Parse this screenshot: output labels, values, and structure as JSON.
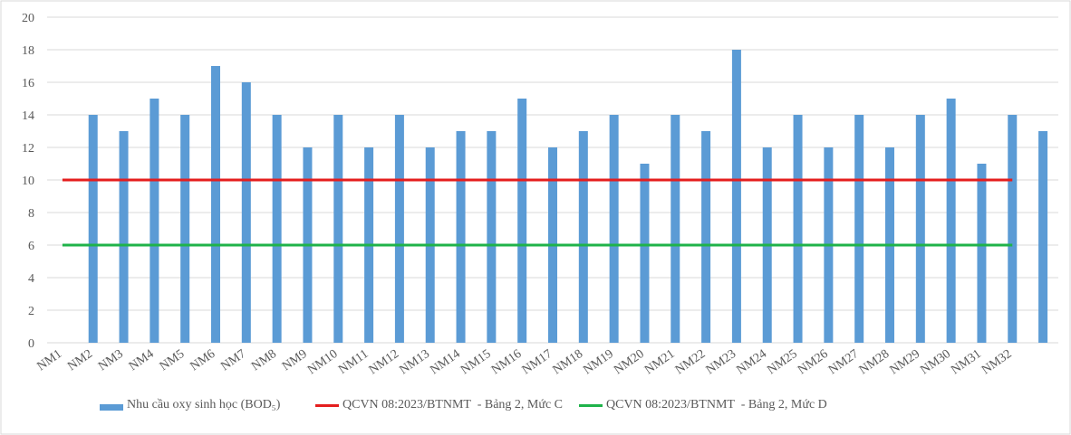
{
  "chart_data": {
    "type": "bar",
    "categories": [
      "NM1",
      "NM2",
      "NM3",
      "NM4",
      "NM5",
      "NM6",
      "NM7",
      "NM8",
      "NM9",
      "NM10",
      "NM11",
      "NM12",
      "NM13",
      "NM14",
      "NM15",
      "NM16",
      "NM17",
      "NM18",
      "NM19",
      "NM20",
      "NM21",
      "NM22",
      "NM23",
      "NM24",
      "NM25",
      "NM26",
      "NM27",
      "NM28",
      "NM29",
      "NM30",
      "NM31",
      "NM32",
      null
    ],
    "series": [
      {
        "name": "Nhu cầu oxy sinh học (BOD₅)",
        "type": "bar",
        "color": "#5b9bd5",
        "values": [
          null,
          14,
          13,
          15,
          14,
          17,
          16,
          14,
          12,
          14,
          12,
          14,
          12,
          13,
          13,
          15,
          12,
          13,
          14,
          11,
          14,
          13,
          18,
          12,
          14,
          12,
          14,
          12,
          14,
          15,
          11,
          14,
          13
        ]
      },
      {
        "name": "QCVN 08:2023/BTNMT  - Bảng 2, Mức C",
        "type": "line",
        "color": "#e41e1e",
        "values": [
          10,
          10,
          10,
          10,
          10,
          10,
          10,
          10,
          10,
          10,
          10,
          10,
          10,
          10,
          10,
          10,
          10,
          10,
          10,
          10,
          10,
          10,
          10,
          10,
          10,
          10,
          10,
          10,
          10,
          10,
          10,
          10,
          null
        ]
      },
      {
        "name": "QCVN 08:2023/BTNMT  - Bảng 2, Mức D",
        "type": "line",
        "color": "#1fb34a",
        "values": [
          6,
          6,
          6,
          6,
          6,
          6,
          6,
          6,
          6,
          6,
          6,
          6,
          6,
          6,
          6,
          6,
          6,
          6,
          6,
          6,
          6,
          6,
          6,
          6,
          6,
          6,
          6,
          6,
          6,
          6,
          6,
          6,
          null
        ]
      }
    ],
    "ylim": [
      0,
      20
    ],
    "yticks": [
      0,
      2,
      4,
      6,
      8,
      10,
      12,
      14,
      16,
      18,
      20
    ],
    "grid": true,
    "legend": "bottom"
  }
}
